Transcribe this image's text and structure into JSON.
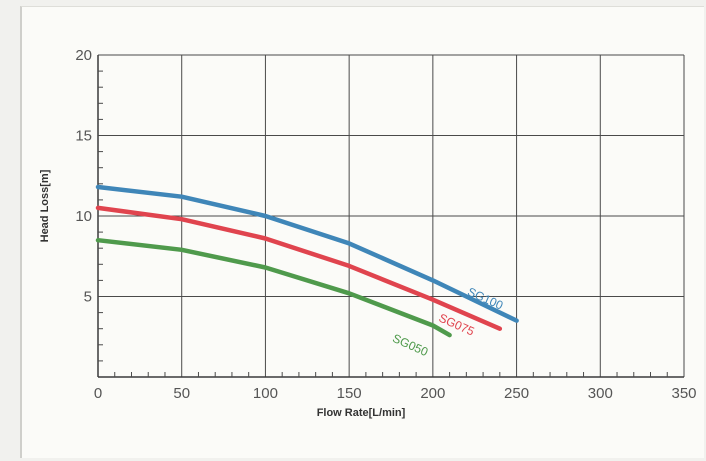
{
  "chart_data": {
    "type": "line",
    "title": "",
    "xlabel": "Flow Rate[L/min]",
    "ylabel": "Head Loss[m]",
    "xlim": [
      0,
      350
    ],
    "ylim": [
      0,
      20
    ],
    "xticks": [
      "0",
      "50",
      "100",
      "150",
      "200",
      "250",
      "300",
      "350"
    ],
    "yticks": [
      "5",
      "10",
      "15",
      "20"
    ],
    "grid": true,
    "series": [
      {
        "name": "SG100",
        "color": "#3f86b8",
        "x": [
          0,
          50,
          100,
          150,
          200,
          250
        ],
        "y": [
          11.8,
          11.2,
          10.0,
          8.3,
          6.0,
          3.5
        ]
      },
      {
        "name": "SG075",
        "color": "#e0444e",
        "x": [
          0,
          50,
          100,
          150,
          200,
          240
        ],
        "y": [
          10.5,
          9.8,
          8.6,
          6.9,
          4.8,
          3.0
        ]
      },
      {
        "name": "SG050",
        "color": "#4f9a4c",
        "x": [
          0,
          50,
          100,
          150,
          200,
          210
        ],
        "y": [
          8.5,
          7.9,
          6.8,
          5.2,
          3.2,
          2.6
        ]
      }
    ]
  }
}
